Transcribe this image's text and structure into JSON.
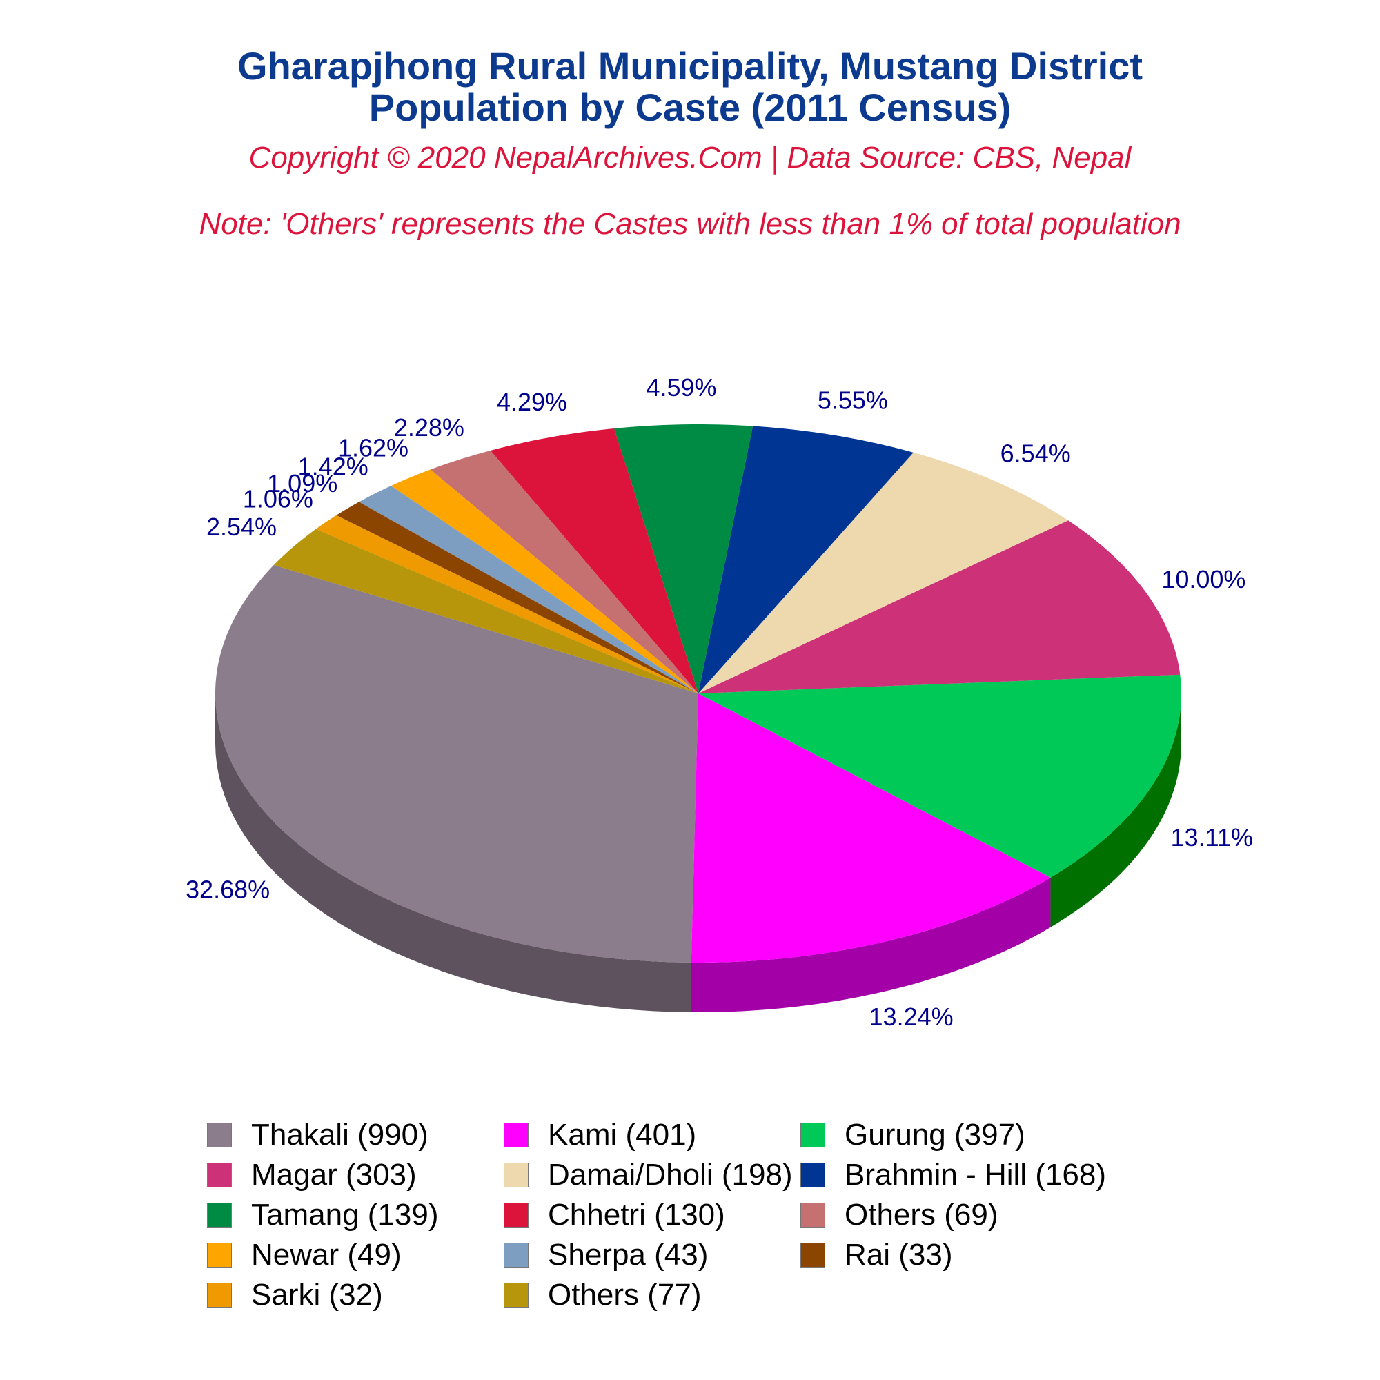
{
  "title_line1": "Gharapjhong Rural Municipality, Mustang District",
  "title_line2": "Population by Caste (2011 Census)",
  "copyright": "Copyright © 2020 NepalArchives.Com | Data Source: CBS, Nepal",
  "note": "Note: 'Others' represents the Castes with less than 1% of total population",
  "chart_data": {
    "type": "pie",
    "style": "3d",
    "legend_position": "bottom",
    "label_color": "#00008b",
    "slices": [
      {
        "label": "Thakali",
        "value": 990,
        "percent": "32.68%",
        "legend": "Thakali (990)",
        "color": "#8b7d8b",
        "side": "#5e525e"
      },
      {
        "label": "Kami",
        "value": 401,
        "percent": "13.24%",
        "legend": "Kami (401)",
        "color": "#ff00ff",
        "side": "#a300a8"
      },
      {
        "label": "Gurung",
        "value": 397,
        "percent": "13.11%",
        "legend": "Gurung (397)",
        "color": "#00c957",
        "side": "#007000"
      },
      {
        "label": "Magar",
        "value": 303,
        "percent": "10.00%",
        "legend": "Magar (303)",
        "color": "#cd3278",
        "side": "#700020"
      },
      {
        "label": "Damai/Dholi",
        "value": 198,
        "percent": "6.54%",
        "legend": "Damai/Dholi (198)",
        "color": "#eed8ae",
        "side": "#917f55"
      },
      {
        "label": "Brahmin - Hill",
        "value": 168,
        "percent": "5.55%",
        "legend": "Brahmin - Hill (168)",
        "color": "#003594",
        "side": "#000040"
      },
      {
        "label": "Tamang",
        "value": 139,
        "percent": "4.59%",
        "legend": "Tamang (139)",
        "color": "#008b45",
        "side": "#003000"
      },
      {
        "label": "Chhetri",
        "value": 130,
        "percent": "4.29%",
        "legend": "Chhetri (130)",
        "color": "#dc143c",
        "side": "#800000"
      },
      {
        "label": "Others",
        "value": 69,
        "percent": "2.28%",
        "legend": "Others (69)",
        "color": "#c67171",
        "side": "#7a3a3a"
      },
      {
        "label": "Newar",
        "value": 49,
        "percent": "1.62%",
        "legend": "Newar (49)",
        "color": "#ffa500",
        "side": "#a06000"
      },
      {
        "label": "Sherpa",
        "value": 43,
        "percent": "1.42%",
        "legend": "Sherpa (43)",
        "color": "#7d9ec0",
        "side": "#4a6480"
      },
      {
        "label": "Rai",
        "value": 33,
        "percent": "1.09%",
        "legend": "Rai (33)",
        "color": "#8b4500",
        "side": "#502800"
      },
      {
        "label": "Sarki",
        "value": 32,
        "percent": "1.06%",
        "legend": "Sarki (32)",
        "color": "#ee9a00",
        "side": "#905c00"
      },
      {
        "label": "Others",
        "value": 77,
        "percent": "2.54%",
        "legend": "Others (77)",
        "color": "#b8960c",
        "side": "#6e5a06"
      }
    ]
  }
}
